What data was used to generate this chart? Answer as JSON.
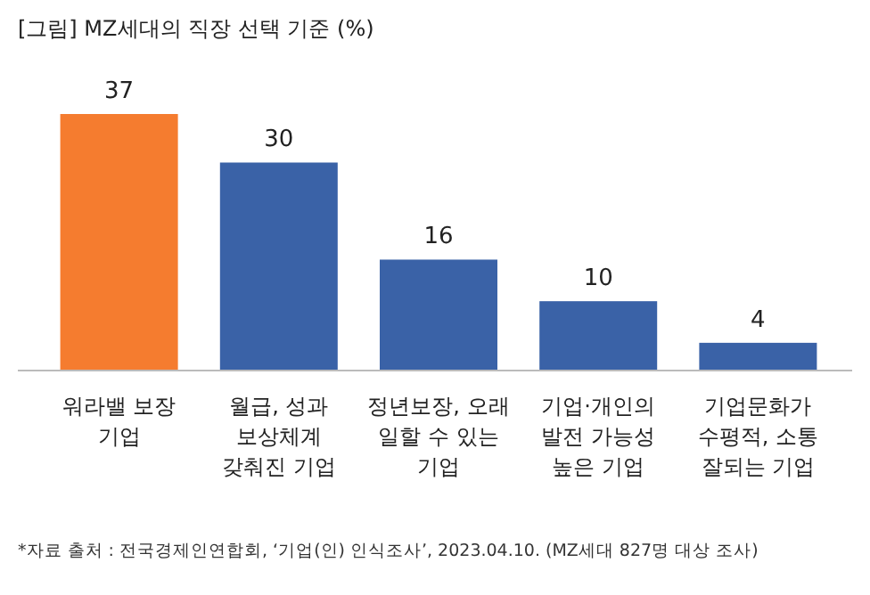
{
  "chart_data": {
    "type": "bar",
    "title": "[그림] MZ세대의 직장 선택 기준 (%)",
    "categories": [
      "워라밸 보장 기업",
      "월급, 성과 보상체계 갖춰진 기업",
      "정년보장, 오래 일할 수 있는 기업",
      "기업·개인의 발전 가능성 높은 기업",
      "기업문화가 수평적, 소통 잘되는 기업"
    ],
    "values": [
      37,
      30,
      16,
      10,
      4
    ],
    "colors": [
      "#f57c2f",
      "#3a62a7",
      "#3a62a7",
      "#3a62a7",
      "#3a62a7"
    ],
    "data_labels": true,
    "annotations": [
      "*자료 출처 : 전국경제인연합회, ‘기업(인) 인식조사’, 2023.04.10. (MZ세대 827명 대상 조사)"
    ]
  }
}
